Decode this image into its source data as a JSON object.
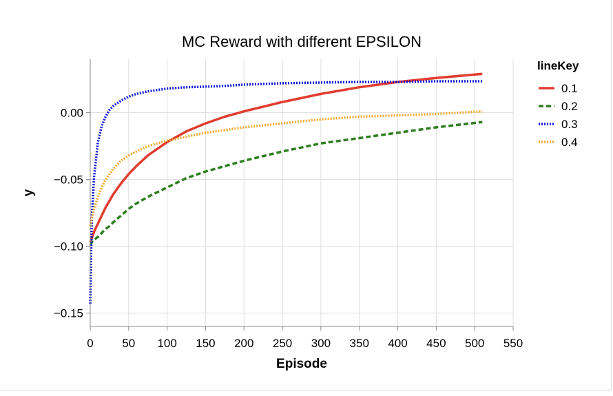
{
  "chart_data": {
    "type": "line",
    "title": "MC Reward with different EPSILON",
    "xlabel": "Episode",
    "ylabel": "y",
    "xlim": [
      0,
      550
    ],
    "ylim": [
      -0.16,
      0.04
    ],
    "x_ticks": [
      "0",
      "50",
      "100",
      "150",
      "200",
      "250",
      "300",
      "350",
      "400",
      "450",
      "500",
      "550"
    ],
    "y_ticks": [
      "0.00",
      "−0.05",
      "−0.10",
      "−0.15"
    ],
    "grid": true,
    "legend_title": "lineKey",
    "legend_position": "right",
    "x": [
      0,
      2,
      5,
      10,
      15,
      20,
      25,
      30,
      40,
      50,
      60,
      75,
      100,
      125,
      150,
      175,
      200,
      250,
      300,
      350,
      400,
      450,
      510
    ],
    "series": [
      {
        "name": "0.1",
        "color": "#e03c2f",
        "style": "solid",
        "values": [
          -0.097,
          -0.094,
          -0.089,
          -0.083,
          -0.077,
          -0.071,
          -0.066,
          -0.061,
          -0.053,
          -0.046,
          -0.04,
          -0.032,
          -0.022,
          -0.014,
          -0.008,
          -0.003,
          0.001,
          0.008,
          0.014,
          0.019,
          0.023,
          0.026,
          0.029
        ]
      },
      {
        "name": "0.2",
        "color": "#2e7d1f",
        "style": "dashed",
        "values": [
          -0.099,
          -0.097,
          -0.095,
          -0.093,
          -0.09,
          -0.087,
          -0.085,
          -0.082,
          -0.077,
          -0.072,
          -0.068,
          -0.063,
          -0.056,
          -0.049,
          -0.044,
          -0.04,
          -0.036,
          -0.029,
          -0.023,
          -0.019,
          -0.015,
          -0.011,
          -0.007
        ]
      },
      {
        "name": "0.3",
        "color": "#0a14d8",
        "style": "dotted",
        "values": [
          -0.143,
          -0.08,
          -0.048,
          -0.022,
          -0.01,
          -0.003,
          0.002,
          0.005,
          0.009,
          0.012,
          0.014,
          0.016,
          0.018,
          0.019,
          0.0195,
          0.02,
          0.021,
          0.022,
          0.0225,
          0.023,
          0.023,
          0.0235,
          0.0235
        ]
      },
      {
        "name": "0.4",
        "color": "#f0a830",
        "style": "dotted",
        "values": [
          -0.085,
          -0.079,
          -0.072,
          -0.063,
          -0.056,
          -0.05,
          -0.046,
          -0.042,
          -0.036,
          -0.032,
          -0.029,
          -0.025,
          -0.021,
          -0.018,
          -0.015,
          -0.013,
          -0.011,
          -0.008,
          -0.005,
          -0.003,
          -0.002,
          -0.001,
          0.001
        ]
      }
    ]
  }
}
